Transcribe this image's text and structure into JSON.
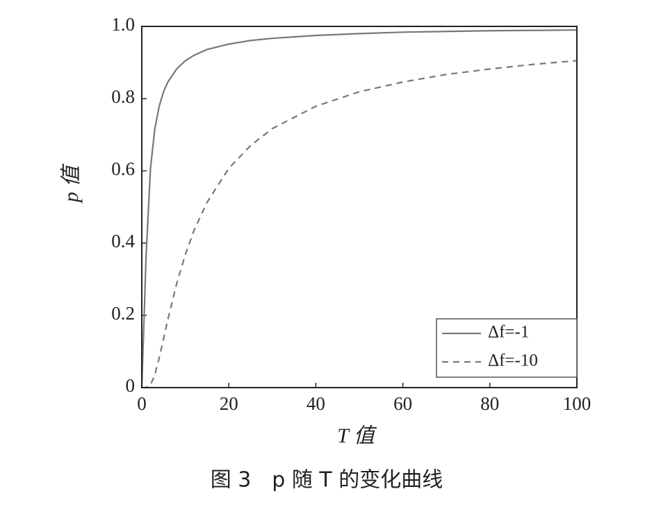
{
  "chart_data": {
    "type": "line",
    "caption": "图 3　p 随 T 的变化曲线",
    "xlabel": "T 值",
    "ylabel": "p 值",
    "x": [
      0,
      1,
      2,
      3,
      4,
      5,
      6,
      8,
      10,
      12,
      15,
      20,
      25,
      30,
      40,
      50,
      60,
      70,
      80,
      90,
      100
    ],
    "series": [
      {
        "name": "Δf=-1",
        "color": "#777777",
        "linestyle": "solid",
        "values": [
          0,
          0.368,
          0.607,
          0.717,
          0.779,
          0.819,
          0.846,
          0.882,
          0.905,
          0.92,
          0.936,
          0.951,
          0.961,
          0.967,
          0.975,
          0.98,
          0.984,
          0.986,
          0.988,
          0.989,
          0.99
        ]
      },
      {
        "name": "Δf=-10",
        "color": "#777777",
        "linestyle": "dashed",
        "values": [
          0,
          0,
          0.007,
          0.036,
          0.082,
          0.135,
          0.189,
          0.287,
          0.368,
          0.435,
          0.513,
          0.607,
          0.67,
          0.717,
          0.779,
          0.819,
          0.846,
          0.867,
          0.882,
          0.895,
          0.905
        ]
      }
    ],
    "xlim": [
      0,
      100
    ],
    "xticks": [
      0,
      20,
      40,
      60,
      80,
      100
    ],
    "ylim": [
      0,
      1
    ],
    "yticks": [
      0,
      0.2,
      0.4,
      0.6,
      0.8,
      {
        "value": 1,
        "label": "1.0"
      }
    ],
    "legend": "lower right"
  }
}
